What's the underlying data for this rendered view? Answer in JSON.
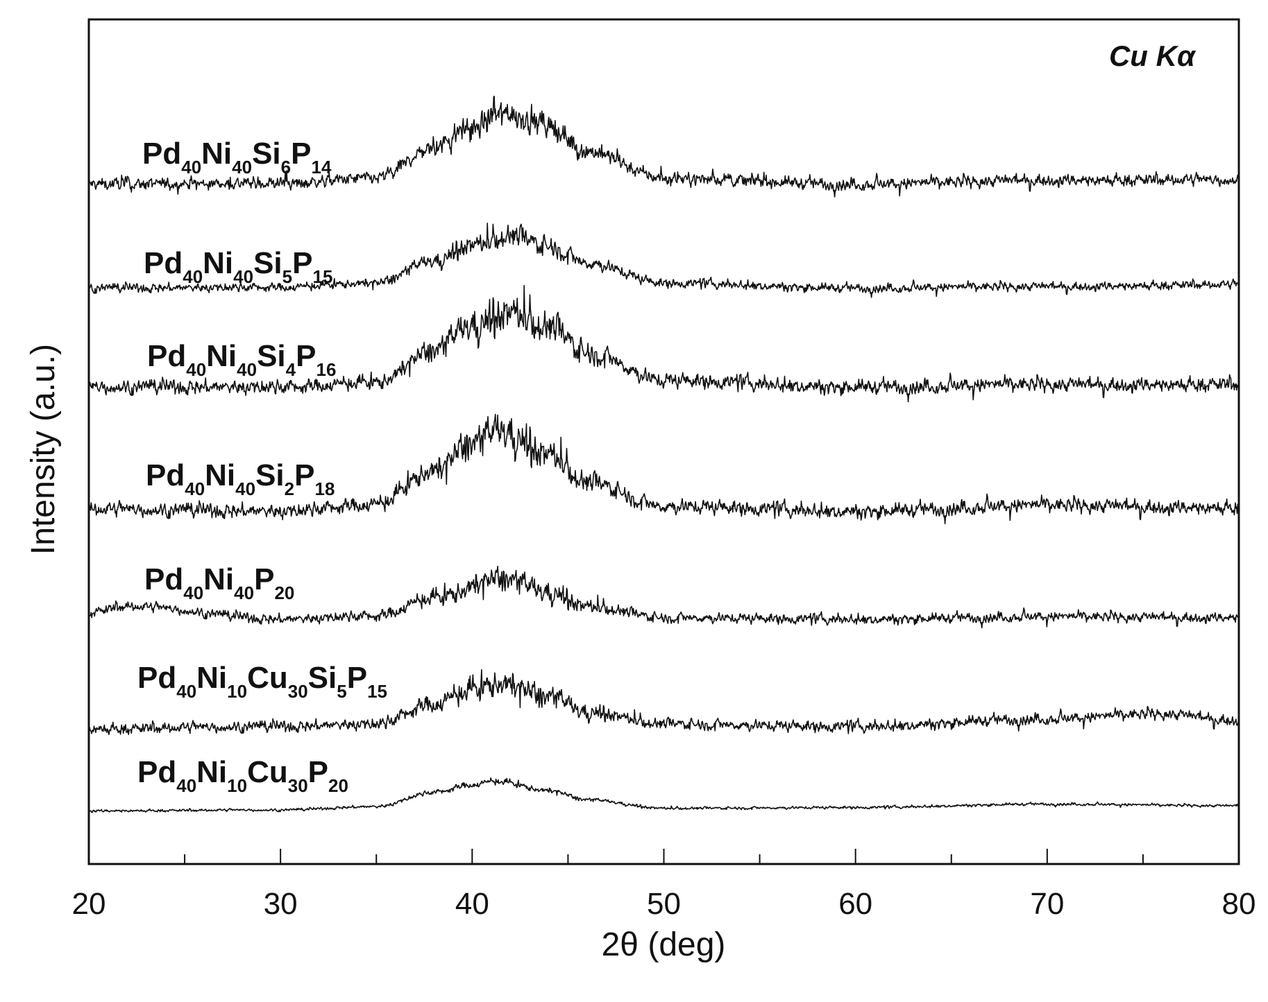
{
  "chart_data": {
    "type": "line",
    "xlabel": "2θ (deg)",
    "ylabel": "Intensity (a.u.)",
    "xlim": [
      20,
      80
    ],
    "xticks": [
      20,
      30,
      40,
      50,
      60,
      70,
      80
    ],
    "annotation": "Cu Kα",
    "series": [
      {
        "name": "Pd40Ni40Si6P14",
        "label_parts": [
          [
            "Pd",
            "40"
          ],
          [
            "Ni",
            "40"
          ],
          [
            "Si",
            "6"
          ],
          [
            "P",
            "14"
          ]
        ],
        "baseline": 0.805,
        "peak_center": 41.8,
        "peak_height": 0.085,
        "peak_width": 3.6,
        "noise": 0.011,
        "x": [
          20,
          30,
          35,
          38,
          40,
          41.8,
          44,
          46,
          50,
          60,
          70,
          80
        ],
        "y": [
          0.805,
          0.806,
          0.812,
          0.848,
          0.872,
          0.89,
          0.873,
          0.844,
          0.812,
          0.805,
          0.81,
          0.81
        ]
      },
      {
        "name": "Pd40Ni40Si5P15",
        "label_parts": [
          [
            "Pd",
            "40"
          ],
          [
            "Ni",
            "40"
          ],
          [
            "Si",
            "5"
          ],
          [
            "P",
            "15"
          ]
        ],
        "baseline": 0.682,
        "peak_center": 42.0,
        "peak_height": 0.062,
        "peak_width": 3.6,
        "noise": 0.008,
        "x": [
          20,
          30,
          35,
          38,
          40,
          42,
          44,
          46,
          50,
          60,
          70,
          80
        ],
        "y": [
          0.682,
          0.683,
          0.688,
          0.714,
          0.733,
          0.744,
          0.732,
          0.712,
          0.688,
          0.682,
          0.684,
          0.686
        ]
      },
      {
        "name": "Pd40Ni40Si4P16",
        "label_parts": [
          [
            "Pd",
            "40"
          ],
          [
            "Ni",
            "40"
          ],
          [
            "Si",
            "4"
          ],
          [
            "P",
            "16"
          ]
        ],
        "baseline": 0.563,
        "peak_center": 42.0,
        "peak_height": 0.09,
        "peak_width": 3.6,
        "noise": 0.013,
        "x": [
          20,
          30,
          35,
          38,
          40,
          42,
          44,
          46,
          50,
          60,
          70,
          80
        ],
        "y": [
          0.565,
          0.565,
          0.57,
          0.608,
          0.638,
          0.653,
          0.636,
          0.606,
          0.573,
          0.565,
          0.568,
          0.568
        ]
      },
      {
        "name": "Pd40Ni40Si2P18",
        "label_parts": [
          [
            "Pd",
            "40"
          ],
          [
            "Ni",
            "40"
          ],
          [
            "Si",
            "2"
          ],
          [
            "P",
            "18"
          ]
        ],
        "baseline": 0.418,
        "peak_center": 41.5,
        "peak_height": 0.095,
        "peak_width": 3.6,
        "noise": 0.013,
        "x": [
          20,
          30,
          35,
          38,
          40,
          41.5,
          44,
          46,
          50,
          60,
          70,
          80
        ],
        "y": [
          0.42,
          0.418,
          0.426,
          0.466,
          0.498,
          0.513,
          0.485,
          0.452,
          0.424,
          0.418,
          0.425,
          0.422
        ]
      },
      {
        "name": "Pd40Ni40P20",
        "label_parts": [
          [
            "Pd",
            "40"
          ],
          [
            "Ni",
            "40"
          ],
          [
            "P",
            "20"
          ]
        ],
        "baseline": 0.29,
        "peak_center": 41.5,
        "peak_height": 0.048,
        "peak_width": 3.6,
        "noise": 0.009,
        "x": [
          20,
          22,
          30,
          35,
          38,
          41.5,
          44,
          46,
          50,
          60,
          70,
          80
        ],
        "y": [
          0.298,
          0.305,
          0.29,
          0.294,
          0.315,
          0.338,
          0.322,
          0.305,
          0.292,
          0.29,
          0.293,
          0.292
        ]
      },
      {
        "name": "Pd40Ni10Cu30Si5P15",
        "label_parts": [
          [
            "Pd",
            "40"
          ],
          [
            "Ni",
            "10"
          ],
          [
            "Cu",
            "30"
          ],
          [
            "Si",
            "5"
          ],
          [
            "P",
            "15"
          ]
        ],
        "baseline": 0.162,
        "peak_center": 41.5,
        "peak_height": 0.052,
        "peak_width": 3.4,
        "noise": 0.01,
        "x": [
          20,
          30,
          35,
          38,
          40,
          41.5,
          44,
          46,
          50,
          60,
          70,
          76,
          80
        ],
        "y": [
          0.16,
          0.163,
          0.166,
          0.19,
          0.206,
          0.214,
          0.198,
          0.18,
          0.166,
          0.163,
          0.172,
          0.178,
          0.17
        ]
      },
      {
        "name": "Pd40Ni10Cu30P20",
        "label_parts": [
          [
            "Pd",
            "40"
          ],
          [
            "Ni",
            "10"
          ],
          [
            "Cu",
            "30"
          ],
          [
            "P",
            "20"
          ]
        ],
        "baseline": 0.063,
        "peak_center": 41.2,
        "peak_height": 0.035,
        "peak_width": 3.6,
        "noise": 0.0025,
        "x": [
          20,
          30,
          35,
          38,
          40,
          41.2,
          44,
          46,
          50,
          60,
          70,
          80
        ],
        "y": [
          0.063,
          0.064,
          0.068,
          0.085,
          0.094,
          0.098,
          0.087,
          0.076,
          0.066,
          0.067,
          0.071,
          0.069
        ]
      }
    ],
    "grid": false,
    "legend": "inline-labels"
  }
}
